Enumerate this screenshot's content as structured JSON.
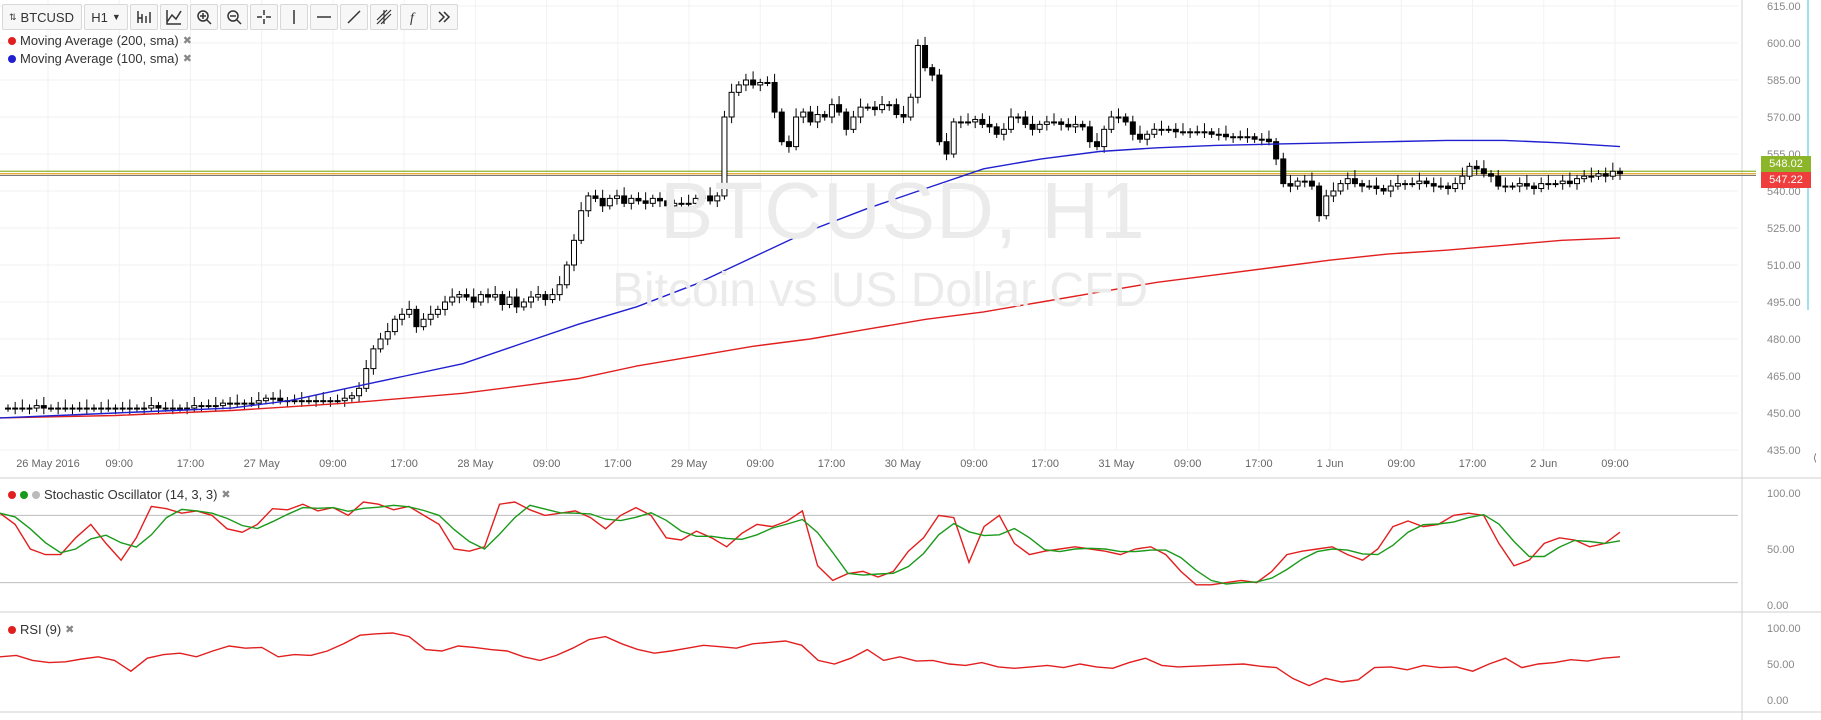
{
  "toolbar": {
    "symbol": "BTCUSD",
    "resolution": "H1",
    "icons": [
      "compare-icon",
      "indicators-icon",
      "crosshair-zoom-icon",
      "zoom-out-icon",
      "crosshair-icon",
      "vertical-line-icon",
      "horizontal-line-icon",
      "trend-line-icon",
      "pitchfork-icon",
      "fib-icon",
      "more-icon"
    ]
  },
  "legends": {
    "ma200": "Moving Average (200, sma)",
    "ma100": "Moving Average (100, sma)",
    "stoch": "Stochastic Oscillator (14, 3, 3)",
    "rsi": "RSI (9)"
  },
  "watermark": {
    "title": "BTCUSD, H1",
    "subtitle": "Bitcoin vs US Dollar CFD"
  },
  "price_tags": {
    "green": "548.02",
    "red": "547.22"
  },
  "colors": {
    "ma200": "#e21f1f",
    "ma100": "#2020d0",
    "stoch_k": "#e21f1f",
    "stoch_d": "#1a9a1a",
    "rsi": "#e21f1f",
    "hline_green": "#8db52a",
    "hline_orange": "#e0a020",
    "price_red": "#ef3c3c"
  },
  "chart_data": {
    "type": "candlestick",
    "price_axis_labels": [
      "615.00",
      "600.00",
      "585.00",
      "570.00",
      "555.00",
      "540.00",
      "525.00",
      "510.00",
      "495.00",
      "480.00",
      "465.00",
      "450.00",
      "435.00"
    ],
    "ylim": [
      435,
      615
    ],
    "time_axis_labels": [
      "26 May 2016",
      "09:00",
      "17:00",
      "27 May",
      "09:00",
      "17:00",
      "28 May",
      "09:00",
      "17:00",
      "29 May",
      "09:00",
      "17:00",
      "30 May",
      "09:00",
      "17:00",
      "31 May",
      "09:00",
      "17:00",
      "1 Jun",
      "09:00",
      "17:00",
      "2 Jun",
      "09:00"
    ],
    "candles_close": [
      452,
      452,
      452,
      452,
      453,
      452,
      452,
      452,
      452,
      452,
      452,
      452,
      452,
      452,
      452,
      452,
      452,
      452,
      452,
      452,
      453,
      452,
      452,
      452,
      452,
      452,
      453,
      453,
      453,
      453,
      454,
      454,
      454,
      454,
      454,
      455,
      456,
      456,
      455,
      455,
      455,
      455,
      455,
      455,
      455,
      455,
      455,
      456,
      457,
      460,
      468,
      476,
      480,
      483,
      488,
      490,
      492,
      485,
      488,
      490,
      492,
      495,
      497,
      498,
      497,
      495,
      498,
      497,
      498,
      494,
      497,
      493,
      495,
      497,
      498,
      496,
      498,
      502,
      510,
      520,
      532,
      538,
      537,
      534,
      537,
      538,
      535,
      537,
      536,
      535,
      537,
      536,
      534,
      535,
      535,
      535,
      537,
      538,
      536,
      538,
      570,
      580,
      583,
      585,
      583,
      584,
      584,
      572,
      560,
      558,
      570,
      572,
      568,
      571,
      570,
      575,
      572,
      565,
      570,
      574,
      574,
      573,
      575,
      575,
      571,
      570,
      578,
      599,
      590,
      587,
      560,
      555,
      568,
      568,
      568,
      569,
      567,
      566,
      563,
      565,
      570,
      570,
      567,
      565,
      567,
      568,
      568,
      567,
      566,
      567,
      566,
      560,
      558,
      565,
      570,
      570,
      568,
      563,
      561,
      563,
      565,
      565,
      565,
      564,
      564,
      564,
      564,
      564,
      563,
      563,
      562,
      562,
      562,
      562,
      561,
      561,
      560,
      553,
      543,
      542,
      544,
      544,
      542,
      530,
      538,
      540,
      543,
      545,
      543,
      542,
      542,
      541,
      540,
      542,
      543,
      543,
      543,
      544,
      543,
      542,
      542,
      541,
      543,
      546,
      550,
      549,
      547,
      546,
      542,
      542,
      542,
      543,
      542,
      541,
      543,
      543,
      543,
      544,
      543,
      545,
      546,
      546,
      547,
      546,
      548,
      547
    ],
    "series": [
      {
        "name": "Moving Average (200, sma)",
        "values": [
          448,
          448.5,
          449,
          450,
          451,
          452.5,
          454,
          456,
          458,
          461,
          464,
          469,
          473,
          477,
          480,
          484,
          488,
          491,
          495,
          499,
          503,
          506,
          509,
          512,
          514.5,
          516,
          518,
          520,
          521
        ]
      },
      {
        "name": "Moving Average (100, sma)",
        "values": [
          448,
          449,
          450,
          451,
          452,
          455,
          460,
          465,
          470,
          478,
          486,
          493,
          502,
          513,
          524,
          533,
          541,
          549,
          553,
          556,
          557.5,
          558.5,
          559,
          559.5,
          560,
          560.5,
          560.5,
          559.5,
          558
        ]
      },
      {
        "name": "Stochastic Oscillator (14, 3, 3)",
        "values": [
          82,
          72,
          50,
          45,
          45,
          60,
          72,
          55,
          40,
          60,
          88,
          86,
          82,
          84,
          80,
          68,
          65,
          72,
          86,
          85,
          90,
          84,
          87,
          80,
          92,
          90,
          85,
          88,
          80,
          72,
          50,
          48,
          52,
          90,
          92,
          85,
          80,
          82,
          84,
          78,
          68,
          80,
          87,
          80,
          60,
          58,
          66,
          60,
          52,
          64,
          72,
          70,
          75,
          84,
          35,
          22,
          28,
          30,
          25,
          30,
          48,
          60,
          80,
          78,
          38,
          70,
          80,
          55,
          45,
          48,
          50,
          52,
          50,
          48,
          45,
          50,
          52,
          45,
          30,
          18,
          18,
          20,
          22,
          20,
          30,
          45,
          48,
          50,
          52,
          45,
          40,
          50,
          70,
          75,
          70,
          72,
          80,
          82,
          80,
          55,
          35,
          40,
          55,
          60,
          58,
          52,
          55,
          65
        ]
      },
      {
        "name": "RSI (9)",
        "values": [
          60,
          62,
          55,
          52,
          53,
          57,
          60,
          55,
          40,
          58,
          63,
          65,
          60,
          68,
          75,
          72,
          73,
          60,
          63,
          62,
          68,
          78,
          90,
          92,
          93,
          88,
          70,
          68,
          75,
          73,
          70,
          68,
          60,
          55,
          62,
          72,
          84,
          88,
          78,
          70,
          65,
          68,
          72,
          76,
          74,
          72,
          78,
          80,
          82,
          76,
          55,
          50,
          58,
          70,
          55,
          60,
          54,
          55,
          50,
          48,
          52,
          46,
          44,
          46,
          48,
          45,
          50,
          46,
          44,
          52,
          58,
          48,
          46,
          47,
          48,
          49,
          50,
          47,
          45,
          30,
          20,
          30,
          25,
          28,
          45,
          46,
          42,
          48,
          45,
          46,
          40,
          50,
          58,
          45,
          50,
          52,
          56,
          54,
          58,
          60
        ]
      }
    ]
  }
}
